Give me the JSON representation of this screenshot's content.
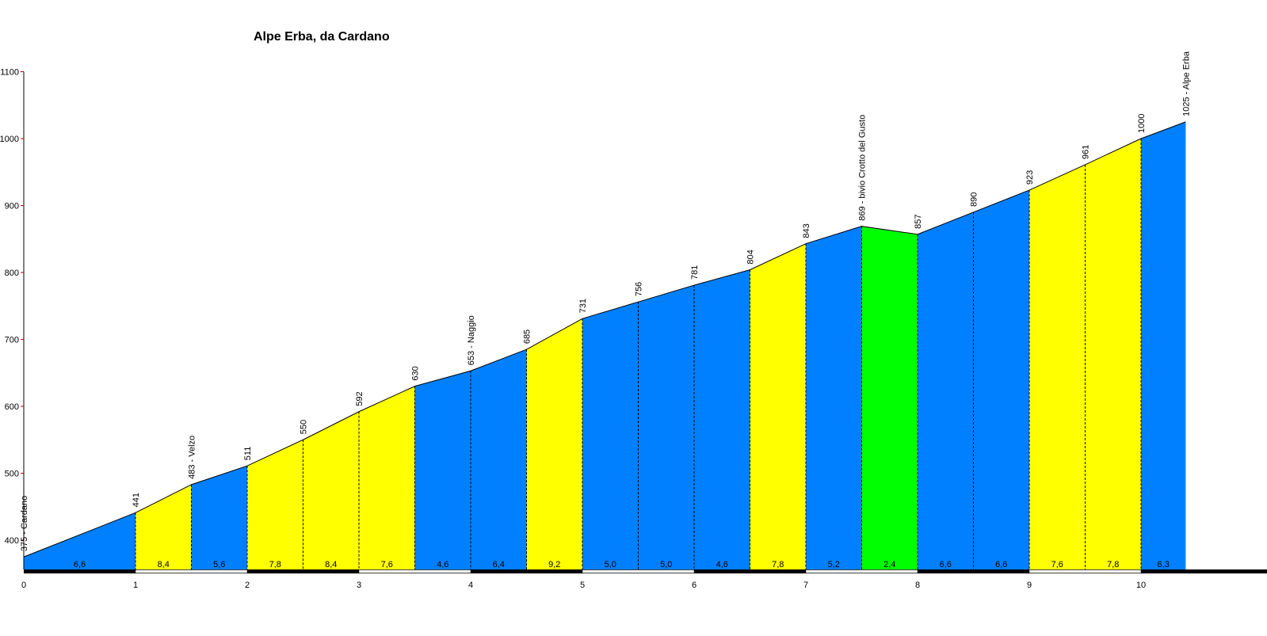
{
  "chart_data": {
    "type": "area",
    "title": "Alpe Erba, da Cardano",
    "xlabel": "",
    "ylabel": "",
    "xlim": [
      0,
      10.93
    ],
    "ylim": [
      355,
      1100
    ],
    "yticks": [
      400,
      500,
      600,
      700,
      800,
      900,
      1000,
      1100
    ],
    "xticks": [
      0,
      1,
      2,
      3,
      4,
      5,
      6,
      7,
      8,
      9,
      10
    ],
    "grid": false,
    "colors": {
      "blue": "#0080ff",
      "yellow": "#ffff00",
      "green": "#00ff00",
      "outline": "#000000",
      "axis": "#000000",
      "tick_mark": "#cc0000"
    },
    "points": [
      {
        "x": 0.0,
        "elev": 375,
        "label": "375 - Cardano"
      },
      {
        "x": 1.0,
        "elev": 441,
        "label": "441"
      },
      {
        "x": 1.5,
        "elev": 483,
        "label": "483 - Velzo"
      },
      {
        "x": 2.0,
        "elev": 511,
        "label": "511"
      },
      {
        "x": 2.5,
        "elev": 550,
        "label": "550"
      },
      {
        "x": 3.0,
        "elev": 592,
        "label": "592"
      },
      {
        "x": 3.5,
        "elev": 630,
        "label": "630"
      },
      {
        "x": 4.0,
        "elev": 653,
        "label": "653 - Naggio"
      },
      {
        "x": 4.5,
        "elev": 685,
        "label": "685"
      },
      {
        "x": 5.0,
        "elev": 731,
        "label": "731"
      },
      {
        "x": 5.5,
        "elev": 756,
        "label": "756"
      },
      {
        "x": 6.0,
        "elev": 781,
        "label": "781"
      },
      {
        "x": 6.5,
        "elev": 804,
        "label": "804"
      },
      {
        "x": 7.0,
        "elev": 843,
        "label": "843"
      },
      {
        "x": 7.5,
        "elev": 869,
        "label": "869 - bivio Crotto del Gusto"
      },
      {
        "x": 8.0,
        "elev": 857,
        "label": "857"
      },
      {
        "x": 8.5,
        "elev": 890,
        "label": "890"
      },
      {
        "x": 9.0,
        "elev": 923,
        "label": "923"
      },
      {
        "x": 9.5,
        "elev": 961,
        "label": "961"
      },
      {
        "x": 10.0,
        "elev": 1000,
        "label": "1000"
      },
      {
        "x": 10.4,
        "elev": 1025,
        "label": "1025 - Alpe Erba"
      }
    ],
    "segments": [
      {
        "from": 0.0,
        "to": 1.0,
        "gradient": "6,6",
        "color": "blue"
      },
      {
        "from": 1.0,
        "to": 1.5,
        "gradient": "8,4",
        "color": "yellow"
      },
      {
        "from": 1.5,
        "to": 2.0,
        "gradient": "5,6",
        "color": "blue"
      },
      {
        "from": 2.0,
        "to": 2.5,
        "gradient": "7,8",
        "color": "yellow"
      },
      {
        "from": 2.5,
        "to": 3.0,
        "gradient": "8,4",
        "color": "yellow"
      },
      {
        "from": 3.0,
        "to": 3.5,
        "gradient": "7,6",
        "color": "yellow"
      },
      {
        "from": 3.5,
        "to": 4.0,
        "gradient": "4,6",
        "color": "blue"
      },
      {
        "from": 4.0,
        "to": 4.5,
        "gradient": "6,4",
        "color": "blue"
      },
      {
        "from": 4.5,
        "to": 5.0,
        "gradient": "9,2",
        "color": "yellow"
      },
      {
        "from": 5.0,
        "to": 5.5,
        "gradient": "5,0",
        "color": "blue"
      },
      {
        "from": 5.5,
        "to": 6.0,
        "gradient": "5,0",
        "color": "blue"
      },
      {
        "from": 6.0,
        "to": 6.5,
        "gradient": "4,6",
        "color": "blue"
      },
      {
        "from": 6.5,
        "to": 7.0,
        "gradient": "7,8",
        "color": "yellow"
      },
      {
        "from": 7.0,
        "to": 7.5,
        "gradient": "5,2",
        "color": "blue"
      },
      {
        "from": 7.5,
        "to": 8.0,
        "gradient": "2,4",
        "color": "green"
      },
      {
        "from": 8.0,
        "to": 8.5,
        "gradient": "6,6",
        "color": "blue"
      },
      {
        "from": 8.5,
        "to": 9.0,
        "gradient": "6,6",
        "color": "blue"
      },
      {
        "from": 9.0,
        "to": 9.5,
        "gradient": "7,6",
        "color": "yellow"
      },
      {
        "from": 9.5,
        "to": 10.0,
        "gradient": "7,8",
        "color": "yellow"
      },
      {
        "from": 10.0,
        "to": 10.4,
        "gradient": "6,3",
        "color": "blue"
      }
    ]
  }
}
